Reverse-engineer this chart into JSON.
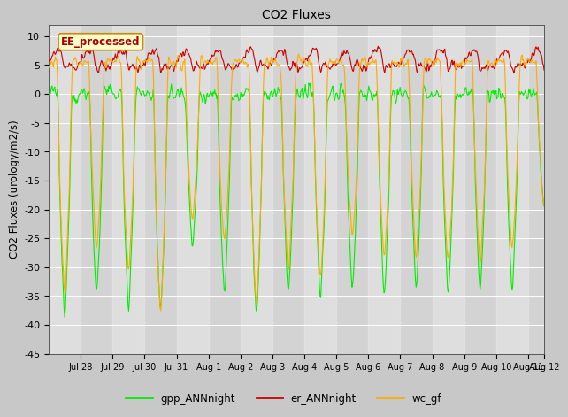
{
  "title": "CO2 Fluxes",
  "ylabel": "CO2 Fluxes (urology/m2/s)",
  "ylim": [
    -45,
    12
  ],
  "yticks": [
    10,
    5,
    0,
    -5,
    -10,
    -15,
    -20,
    -25,
    -30,
    -35,
    -40,
    -45
  ],
  "plot_bg_color": "#d3d3d3",
  "fig_bg_color": "#c8c8c8",
  "legend_label": "EE_processed",
  "series_labels": [
    "gpp_ANNnight",
    "er_ANNnight",
    "wc_gf"
  ],
  "series_colors": [
    "#00ee00",
    "#cc0000",
    "#ffaa00"
  ],
  "n_days": 15.5,
  "points_per_day": 48,
  "xtick_positions": [
    1,
    2,
    3,
    4,
    5,
    6,
    7,
    8,
    9,
    10,
    11,
    12,
    13,
    14,
    15,
    15.5
  ],
  "xtick_labels": [
    "Jul 28",
    "Jul 29",
    "Jul 30",
    "Jul 31",
    "Aug 1",
    "Aug 2",
    "Aug 3",
    "Aug 4",
    "Aug 5",
    "Aug 6",
    "Aug 7",
    "Aug 8",
    "Aug 9",
    "Aug 10",
    "Aug 11",
    "Aug 12"
  ]
}
